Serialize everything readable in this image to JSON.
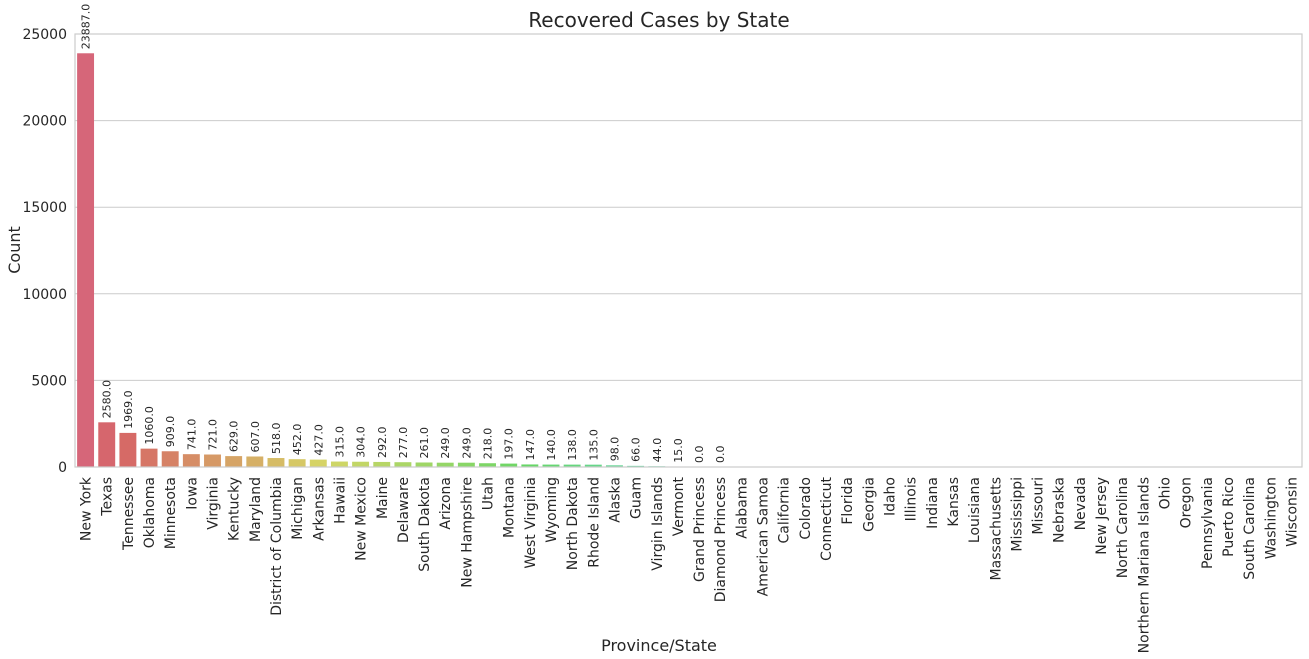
{
  "chart_data": {
    "type": "bar",
    "title": "Recovered Cases by State",
    "xlabel": "Province/State",
    "ylabel": "Count",
    "ylim": [
      0,
      25000
    ],
    "yticks": [
      0,
      5000,
      10000,
      15000,
      20000,
      25000
    ],
    "grid": "horizontal",
    "categories": [
      "New York",
      "Texas",
      "Tennessee",
      "Oklahoma",
      "Minnesota",
      "Iowa",
      "Virginia",
      "Kentucky",
      "Maryland",
      "District of Columbia",
      "Michigan",
      "Arkansas",
      "Hawaii",
      "New Mexico",
      "Maine",
      "Delaware",
      "South Dakota",
      "Arizona",
      "New Hampshire",
      "Utah",
      "Montana",
      "West Virginia",
      "Wyoming",
      "North Dakota",
      "Rhode Island",
      "Alaska",
      "Guam",
      "Virgin Islands",
      "Vermont",
      "Grand Princess",
      "Diamond Princess",
      "Alabama",
      "American Samoa",
      "California",
      "Colorado",
      "Connecticut",
      "Florida",
      "Georgia",
      "Idaho",
      "Illinois",
      "Indiana",
      "Kansas",
      "Louisiana",
      "Massachusetts",
      "Mississippi",
      "Missouri",
      "Nebraska",
      "Nevada",
      "New Jersey",
      "North Carolina",
      "Northern Mariana Islands",
      "Ohio",
      "Oregon",
      "Pennsylvania",
      "Puerto Rico",
      "South Carolina",
      "Washington",
      "Wisconsin"
    ],
    "values": [
      23887,
      2580,
      1969,
      1060,
      909,
      741,
      721,
      629,
      607,
      518,
      452,
      427,
      315,
      304,
      292,
      277,
      261,
      249,
      249,
      218,
      197,
      147,
      140,
      138,
      135,
      98,
      66,
      44,
      15,
      0,
      0,
      null,
      null,
      null,
      null,
      null,
      null,
      null,
      null,
      null,
      null,
      null,
      null,
      null,
      null,
      null,
      null,
      null,
      null,
      null,
      null,
      null,
      null,
      null,
      null,
      null,
      null,
      null
    ],
    "labels": [
      "23887.0",
      "2580.0",
      "1969.0",
      "1060.0",
      "909.0",
      "741.0",
      "721.0",
      "629.0",
      "607.0",
      "518.0",
      "452.0",
      "427.0",
      "315.0",
      "304.0",
      "292.0",
      "277.0",
      "261.0",
      "249.0",
      "249.0",
      "218.0",
      "197.0",
      "147.0",
      "140.0",
      "138.0",
      "135.0",
      "98.0",
      "66.0",
      "44.0",
      "15.0",
      "0.0",
      "0.0",
      "",
      "",
      "",
      "",
      "",
      "",
      "",
      "",
      "",
      "",
      "",
      "",
      "",
      "",
      "",
      "",
      "",
      "",
      "",
      "",
      "",
      "",
      "",
      "",
      "",
      "",
      ""
    ]
  }
}
